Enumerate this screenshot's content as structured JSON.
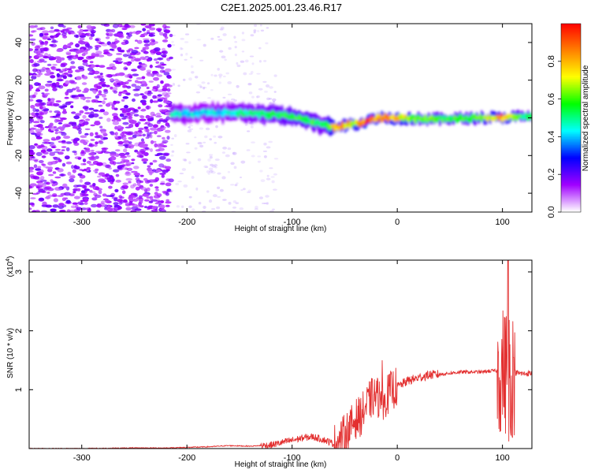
{
  "chart_data": [
    {
      "type": "heatmap",
      "title": "C2E1.2025.001.23.46.R17",
      "xlabel": "Height of straight line (km)",
      "ylabel": "Frequency (Hz)",
      "xlim": [
        -350,
        128
      ],
      "ylim": [
        -50,
        50
      ],
      "xticks": [
        "-300",
        "-200",
        "-100",
        "0",
        "100"
      ],
      "yticks": [
        "-40",
        "-20",
        "0",
        "20",
        "40"
      ],
      "colorbar": {
        "label": "Normalized spectral amplitude",
        "range": [
          0.0,
          1.0
        ],
        "ticks": [
          "0.0",
          "0.2",
          "0.4",
          "0.6",
          "0.8"
        ],
        "colors": [
          "#ffffff",
          "#a000ff",
          "#0000ff",
          "#00ffff",
          "#00ff00",
          "#ffff00",
          "#ff7f00",
          "#ff0000"
        ]
      },
      "signal_track": {
        "x": [
          -215,
          -190,
          -160,
          -130,
          -110,
          -95,
          -80,
          -70,
          -60,
          -50,
          -40,
          -30,
          -20,
          -10,
          0,
          20,
          50,
          80,
          100,
          110,
          128
        ],
        "freq": [
          2,
          2.5,
          3,
          2,
          1.5,
          0,
          -2,
          -4,
          -5,
          -4,
          -3,
          -2,
          0,
          0,
          0,
          -0.5,
          -0.5,
          0,
          0,
          0.5,
          0.5
        ],
        "amplitude": [
          0.45,
          0.4,
          0.45,
          0.5,
          0.55,
          0.6,
          0.55,
          0.5,
          0.8,
          0.75,
          0.7,
          0.9,
          0.85,
          0.85,
          0.75,
          0.6,
          0.55,
          0.6,
          0.85,
          0.6,
          0.5
        ]
      },
      "noise_region_x": [
        -350,
        -215
      ]
    },
    {
      "type": "line",
      "xlabel": "Height of straight line (km)",
      "ylabel": "SNR (10 * v/v)",
      "y_multiplier": "(x10^4)",
      "xlim": [
        -350,
        128
      ],
      "ylim": [
        0,
        3.2
      ],
      "xticks": [
        "-300",
        "-200",
        "-100",
        "0",
        "100"
      ],
      "yticks": [
        "1",
        "2",
        "3"
      ],
      "line_color": "#e33030",
      "series": [
        {
          "x": [
            -350,
            -300,
            -250,
            -220,
            -200,
            -180,
            -160,
            -140,
            -120,
            -110,
            -100,
            -90,
            -80,
            -70,
            -60,
            -55,
            -50,
            -45,
            -40,
            -35,
            -30,
            -25,
            -20,
            -15,
            -10,
            -5,
            0,
            5,
            10,
            20,
            30,
            40,
            50,
            60,
            70,
            80,
            90,
            95,
            100,
            103,
            105,
            107,
            108,
            110,
            115,
            120,
            128
          ],
          "y": [
            0.0,
            0.0,
            0.01,
            0.01,
            0.02,
            0.03,
            0.05,
            0.04,
            0.06,
            0.1,
            0.14,
            0.18,
            0.2,
            0.15,
            0.08,
            0.12,
            0.25,
            0.35,
            0.5,
            0.55,
            0.7,
            0.85,
            0.9,
            0.8,
            0.9,
            1.0,
            1.05,
            1.1,
            1.15,
            1.2,
            1.25,
            1.26,
            1.28,
            1.3,
            1.3,
            1.3,
            1.32,
            1.32,
            1.33,
            1.3,
            1.35,
            1.6,
            1.2,
            1.3,
            1.28,
            1.27,
            1.28
          ]
        }
      ]
    }
  ]
}
